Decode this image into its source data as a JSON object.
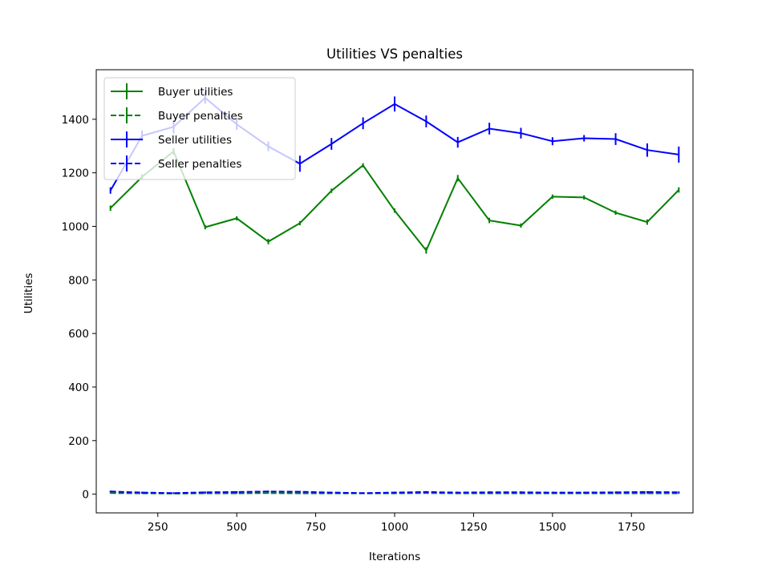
{
  "chart_data": {
    "type": "line",
    "title": "Utilities VS penalties",
    "xlabel": "Iterations",
    "ylabel": "Utilities",
    "xlim": [
      55,
      1945
    ],
    "ylim": [
      -70,
      1585
    ],
    "xticks": [
      250,
      500,
      750,
      1000,
      1250,
      1500,
      1750
    ],
    "yticks": [
      0,
      200,
      400,
      600,
      800,
      1000,
      1200,
      1400
    ],
    "grid": false,
    "legend_position": "top-left",
    "x": [
      100,
      200,
      300,
      400,
      500,
      600,
      700,
      800,
      900,
      1000,
      1100,
      1200,
      1300,
      1400,
      1500,
      1600,
      1700,
      1800,
      1900
    ],
    "series": [
      {
        "name": "Buyer utilities",
        "color": "#008000",
        "style": "solid",
        "values": [
          1068,
          1185,
          1280,
          997,
          1030,
          943,
          1012,
          1133,
          1228,
          1059,
          910,
          1180,
          1022,
          1003,
          1111,
          1108,
          1051,
          1016,
          1136
        ],
        "errors": [
          10,
          10,
          12,
          8,
          8,
          10,
          8,
          8,
          8,
          8,
          12,
          12,
          10,
          8,
          8,
          8,
          8,
          10,
          10
        ]
      },
      {
        "name": "Buyer penalties",
        "color": "#008000",
        "style": "dashed",
        "values": [
          4,
          3,
          2,
          3,
          3,
          4,
          3,
          3,
          3,
          3,
          4,
          3,
          3,
          3,
          3,
          3,
          3,
          3,
          3
        ],
        "errors": [
          2,
          2,
          2,
          2,
          2,
          2,
          2,
          2,
          2,
          2,
          2,
          2,
          2,
          2,
          2,
          2,
          2,
          2,
          2
        ]
      },
      {
        "name": "Seller utilities",
        "color": "#0000ff",
        "style": "solid",
        "values": [
          1134,
          1338,
          1372,
          1480,
          1381,
          1299,
          1234,
          1308,
          1385,
          1457,
          1392,
          1314,
          1365,
          1348,
          1318,
          1329,
          1326,
          1285,
          1268
        ],
        "errors": [
          12,
          20,
          25,
          22,
          20,
          18,
          30,
          22,
          22,
          28,
          22,
          20,
          22,
          20,
          15,
          12,
          22,
          25,
          30
        ]
      },
      {
        "name": "Seller penalties",
        "color": "#0000ff",
        "style": "dashed",
        "values": [
          10,
          6,
          4,
          7,
          8,
          10,
          9,
          6,
          4,
          6,
          8,
          6,
          7,
          7,
          6,
          6,
          7,
          8,
          7
        ],
        "errors": [
          3,
          3,
          3,
          3,
          3,
          3,
          3,
          3,
          3,
          3,
          3,
          3,
          3,
          3,
          3,
          3,
          3,
          3,
          3
        ]
      }
    ]
  }
}
